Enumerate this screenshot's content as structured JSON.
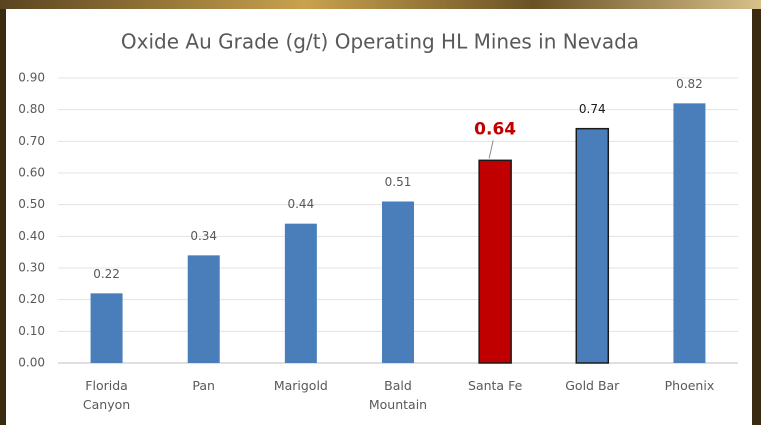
{
  "chart_data": {
    "type": "bar",
    "title": "Oxide Au Grade (g/t) Operating HL Mines in Nevada",
    "categories": [
      "Florida Canyon",
      "Pan",
      "Marigold",
      "Bald Mountain",
      "Santa Fe",
      "Gold Bar",
      "Phoenix"
    ],
    "values": [
      0.22,
      0.34,
      0.44,
      0.51,
      0.64,
      0.74,
      0.82
    ],
    "color": "#4a7ebb",
    "colors": [
      "#4a7ebb",
      "#4a7ebb",
      "#4a7ebb",
      "#4a7ebb",
      "#c00000",
      "#4a7ebb",
      "#4a7ebb"
    ],
    "edgecolors": [
      null,
      null,
      null,
      null,
      "#1a1a1a",
      "#1a1a1a",
      null
    ],
    "ylim": [
      0,
      0.9
    ],
    "yticks": [
      {
        "value": 0,
        "label": "0.00"
      },
      {
        "value": 0.1,
        "label": "0.10"
      },
      {
        "value": 0.2,
        "label": "0.20"
      },
      {
        "value": 0.3,
        "label": "0.30"
      },
      {
        "value": 0.4,
        "label": "0.40"
      },
      {
        "value": 0.5,
        "label": "0.50"
      },
      {
        "value": 0.6,
        "label": "0.60"
      },
      {
        "value": 0.7,
        "label": "0.70"
      },
      {
        "value": 0.8,
        "label": "0.80"
      },
      {
        "value": 0.9,
        "label": "0.90"
      }
    ],
    "grid": true
  }
}
